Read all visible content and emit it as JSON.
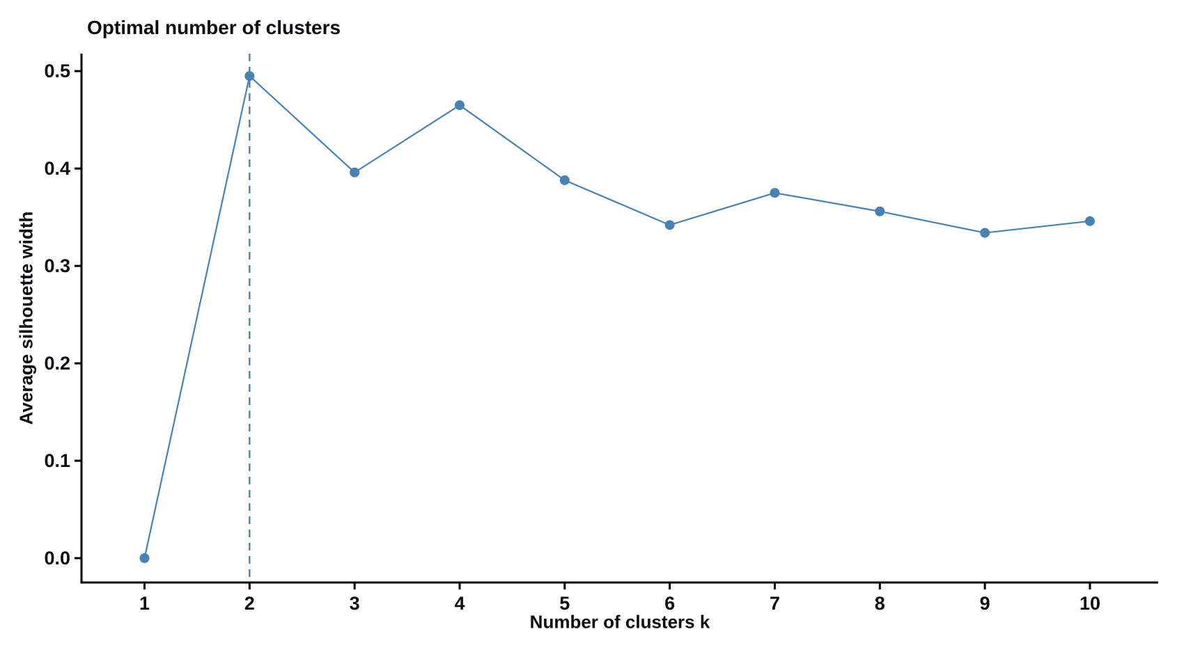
{
  "chart_data": {
    "type": "line",
    "title": "Optimal number of clusters",
    "xlabel": "Number of clusters k",
    "ylabel": "Average silhouette width",
    "x": [
      1,
      2,
      3,
      4,
      5,
      6,
      7,
      8,
      9,
      10
    ],
    "series": [
      {
        "name": "Average silhouette width",
        "values": [
          0.0,
          0.495,
          0.396,
          0.465,
          0.388,
          0.342,
          0.375,
          0.356,
          0.334,
          0.346
        ]
      }
    ],
    "xtick_labels": [
      "1",
      "2",
      "3",
      "4",
      "5",
      "6",
      "7",
      "8",
      "9",
      "10"
    ],
    "ytick_values": [
      0.0,
      0.1,
      0.2,
      0.3,
      0.4,
      0.5
    ],
    "ytick_labels": [
      "0.0",
      "0.1",
      "0.2",
      "0.3",
      "0.4",
      "0.5"
    ],
    "xlim": [
      0.4,
      10.65
    ],
    "ylim": [
      -0.025,
      0.518
    ],
    "vline": {
      "x": 2,
      "style": "dashed"
    },
    "grid": false,
    "legend": false,
    "colors": {
      "line": "#4682b4",
      "point": "#4682b4",
      "vline": "#4f87bb",
      "axis": "#000000",
      "text": "#0d0d12"
    }
  }
}
